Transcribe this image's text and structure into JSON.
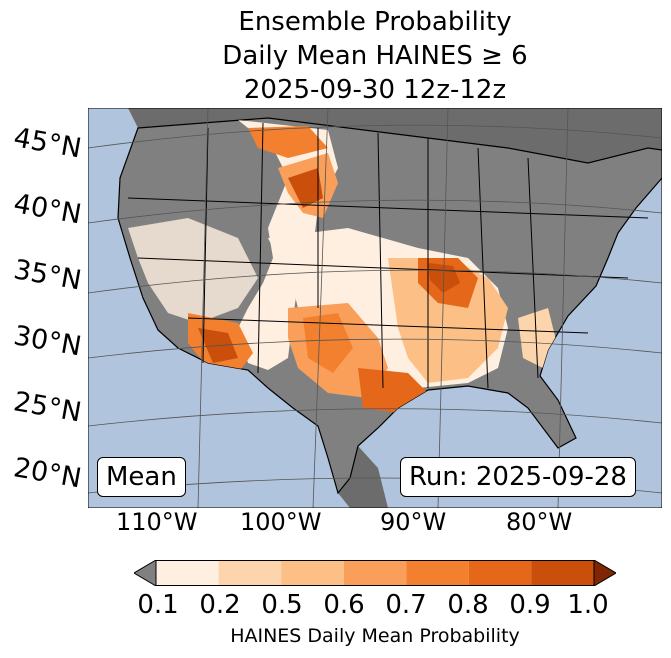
{
  "title": {
    "line1": "Ensemble Probability",
    "line2": "Daily Mean HAINES ≥ 6",
    "line3": "2025-09-30 12z-12z"
  },
  "lat_labels": [
    "45°N",
    "40°N",
    "35°N",
    "30°N",
    "25°N",
    "20°N"
  ],
  "lon_labels": [
    "110°W",
    "100°W",
    "90°W",
    "80°W"
  ],
  "mean_box": "Mean",
  "run_box": "Run: 2025-09-28",
  "colorbar": {
    "ticks": [
      "0.1",
      "0.2",
      "0.5",
      "0.6",
      "0.7",
      "0.8",
      "0.9",
      "1.0"
    ],
    "colors": [
      "#ffefe0",
      "#fdd5ad",
      "#fcbf86",
      "#fa9f5a",
      "#f3802f",
      "#e4671a",
      "#c94f0b"
    ],
    "under_color": "#808080",
    "over_color": "#7f2704",
    "label": "HAINES Daily Mean Probability"
  },
  "map_colors": {
    "ocean": "#b0c4de",
    "land_low": "#808080",
    "land_outside": "#6c6c6c"
  }
}
